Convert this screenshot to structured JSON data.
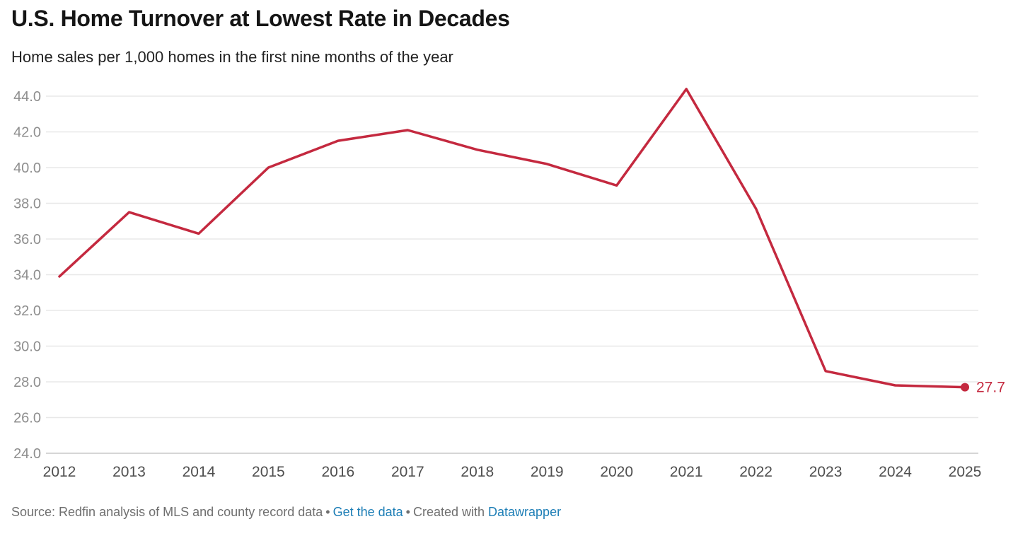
{
  "header": {
    "title": "U.S. Home Turnover at Lowest Rate in Decades",
    "subtitle": "Home sales per 1,000 homes in the first nine months of the year"
  },
  "chart_data": {
    "type": "line",
    "title": "U.S. Home Turnover at Lowest Rate in Decades",
    "subtitle": "Home sales per 1,000 homes in the first nine months of the year",
    "x": [
      2012,
      2013,
      2014,
      2015,
      2016,
      2017,
      2018,
      2019,
      2020,
      2021,
      2022,
      2023,
      2024,
      2025
    ],
    "series": [
      {
        "name": "Home sales per 1,000 homes (first nine months)",
        "values": [
          33.9,
          37.5,
          36.3,
          40.0,
          41.5,
          42.1,
          41.0,
          40.2,
          39.0,
          44.4,
          37.7,
          28.6,
          27.8,
          27.7
        ]
      }
    ],
    "xlabel": "",
    "ylabel": "",
    "ylim": [
      24.0,
      44.0
    ],
    "ytick_step": 2.0,
    "ytick_labels": [
      "24.0",
      "26.0",
      "28.0",
      "30.0",
      "32.0",
      "34.0",
      "36.0",
      "38.0",
      "40.0",
      "42.0",
      "44.0"
    ],
    "xtick_labels": [
      "2012",
      "2013",
      "2014",
      "2015",
      "2016",
      "2017",
      "2018",
      "2019",
      "2020",
      "2021",
      "2022",
      "2023",
      "2024",
      "2025"
    ],
    "grid": "horizontal",
    "legend_position": "none",
    "end_point_label": "27.7"
  },
  "colors": {
    "line": "#c4293f",
    "grid": "#e8e8e8",
    "axis_baseline": "#c8c8c8",
    "ytick_text": "#8e8e8e",
    "xtick_text": "#4f4f4f",
    "title_text": "#151515",
    "footer_text": "#6f6f6f",
    "link": "#1d7eb6"
  },
  "footer": {
    "source_text": "Source: Redfin analysis of MLS and county record data",
    "separator": "•",
    "get_data_label": "Get the data",
    "created_with_text": "Created with ",
    "datawrapper_label": "Datawrapper"
  }
}
